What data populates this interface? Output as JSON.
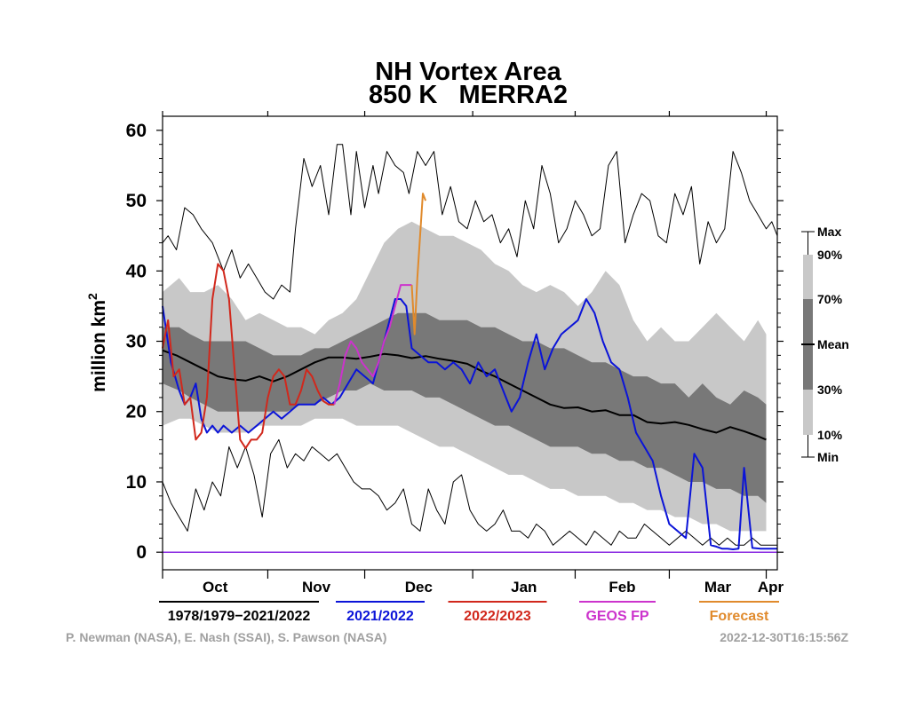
{
  "chart_data": {
    "type": "area",
    "title": "NH Vortex Area",
    "subtitle": "850 K   MERRA2",
    "ylabel": "million km",
    "ylabel_sup": "2",
    "ylim": [
      -2.5,
      62
    ],
    "yticks": [
      "0",
      "10",
      "20",
      "30",
      "40",
      "50",
      "60"
    ],
    "x_range": [
      0,
      222
    ],
    "months": [
      {
        "label": "Oct",
        "start": 0,
        "end": 38
      },
      {
        "label": "Nov",
        "start": 38,
        "end": 73
      },
      {
        "label": "Dec",
        "start": 73,
        "end": 112
      },
      {
        "label": "Jan",
        "start": 112,
        "end": 149
      },
      {
        "label": "Feb",
        "start": 149,
        "end": 183
      },
      {
        "label": "Mar",
        "start": 183,
        "end": 218
      },
      {
        "label": "Apr",
        "start": 218,
        "end": 222
      }
    ],
    "x_month_ticks": [
      0,
      38,
      73,
      112,
      149,
      183,
      218
    ],
    "bands": {
      "x": [
        0,
        6,
        10,
        15,
        20,
        25,
        30,
        35,
        40,
        45,
        50,
        55,
        60,
        65,
        70,
        75,
        80,
        85,
        90,
        95,
        100,
        105,
        110,
        115,
        120,
        125,
        130,
        135,
        140,
        145,
        150,
        155,
        160,
        165,
        170,
        175,
        180,
        185,
        190,
        195,
        200,
        205,
        210,
        215,
        218
      ],
      "p90": [
        37,
        39,
        37,
        37,
        38,
        36,
        33,
        34,
        33,
        32,
        32,
        31,
        33,
        34,
        36,
        40,
        44,
        46,
        47,
        46,
        45,
        45,
        44,
        43,
        41,
        40,
        38,
        37,
        38,
        37,
        35,
        37,
        40,
        38,
        33,
        30,
        32,
        30,
        30,
        32,
        34,
        32,
        30,
        33,
        31
      ],
      "p70": [
        32,
        32,
        31,
        30,
        30,
        30,
        30,
        29,
        28,
        28,
        28,
        29,
        29,
        30,
        31,
        32,
        33,
        34,
        34,
        34,
        33,
        33,
        33,
        32,
        32,
        31,
        30,
        30,
        29,
        29,
        28,
        27,
        27,
        26,
        25,
        25,
        24,
        24,
        22,
        24,
        22,
        21,
        23,
        22,
        21
      ],
      "p30": [
        24,
        23,
        22,
        21,
        20,
        20,
        20,
        20,
        20,
        20,
        21,
        21,
        22,
        23,
        23,
        24,
        23,
        23,
        23,
        22,
        22,
        21,
        20,
        19,
        18,
        18,
        17,
        16,
        15,
        15,
        15,
        14,
        14,
        13,
        13,
        12,
        12,
        11,
        10,
        10,
        9,
        9,
        8,
        8,
        7
      ],
      "p10": [
        18,
        19,
        19,
        18,
        17,
        17,
        17,
        18,
        18,
        18,
        18,
        19,
        19,
        19,
        18,
        18,
        18,
        18,
        17,
        16,
        15,
        15,
        14,
        13,
        12,
        11,
        11,
        10,
        9,
        9,
        8,
        8,
        8,
        7,
        7,
        6,
        6,
        5,
        5,
        4,
        4,
        3,
        3,
        3,
        3
      ]
    },
    "series": [
      {
        "name": "1978/1979−2021/2022",
        "role": "max",
        "color": "#000000",
        "x": [
          0,
          2,
          5,
          8,
          11,
          14,
          18,
          22,
          25,
          28,
          31,
          34,
          37,
          40,
          43,
          46,
          48,
          51,
          54,
          57,
          60,
          63,
          65,
          68,
          70,
          73,
          76,
          78,
          81,
          84,
          87,
          89,
          92,
          95,
          98,
          101,
          104,
          107,
          110,
          113,
          116,
          119,
          122,
          125,
          128,
          131,
          134,
          137,
          140,
          143,
          146,
          149,
          152,
          155,
          158,
          161,
          164,
          167,
          170,
          173,
          176,
          179,
          182,
          185,
          188,
          191,
          194,
          197,
          200,
          203,
          206,
          209,
          212,
          215,
          218,
          220,
          222
        ],
        "y": [
          44,
          45,
          43,
          49,
          48,
          46,
          44,
          40,
          43,
          39,
          41,
          39,
          37,
          36,
          38,
          37,
          46,
          56,
          52,
          55,
          48,
          58,
          58,
          48,
          57,
          49,
          55,
          51,
          57,
          55,
          54,
          51,
          57,
          55,
          57,
          48,
          52,
          47,
          46,
          50,
          47,
          48,
          44,
          46,
          42,
          50,
          46,
          55,
          51,
          44,
          46,
          50,
          48,
          45,
          46,
          55,
          57,
          44,
          48,
          51,
          50,
          45,
          44,
          51,
          48,
          52,
          41,
          47,
          44,
          46,
          57,
          54,
          50,
          48,
          46,
          47,
          45
        ],
        "stroke": 1
      },
      {
        "name": "1978/1979−2021/2022",
        "role": "min",
        "color": "#000000",
        "x": [
          0,
          3,
          6,
          9,
          12,
          15,
          18,
          21,
          24,
          27,
          30,
          33,
          36,
          39,
          42,
          45,
          48,
          51,
          54,
          57,
          60,
          63,
          66,
          69,
          72,
          75,
          78,
          81,
          84,
          87,
          90,
          93,
          96,
          99,
          102,
          105,
          108,
          111,
          114,
          117,
          120,
          123,
          126,
          129,
          132,
          135,
          138,
          141,
          144,
          147,
          150,
          153,
          156,
          159,
          162,
          165,
          168,
          171,
          174,
          177,
          180,
          183,
          186,
          189,
          192,
          195,
          198,
          201,
          204,
          207,
          210,
          213,
          216,
          219,
          222
        ],
        "y": [
          10,
          7,
          5,
          3,
          9,
          6,
          10,
          8,
          15,
          12,
          15,
          11,
          5,
          14,
          16,
          12,
          14,
          13,
          15,
          14,
          13,
          14,
          12,
          10,
          9,
          9,
          8,
          6,
          7,
          9,
          4,
          3,
          9,
          6,
          4,
          10,
          11,
          6,
          4,
          3,
          4,
          6,
          3,
          3,
          2,
          4,
          3,
          1,
          2,
          3,
          2,
          1,
          3,
          2,
          1,
          3,
          2,
          2,
          4,
          3,
          2,
          1,
          2,
          3,
          2,
          1,
          2,
          1,
          2,
          1,
          1,
          2,
          1,
          1,
          1
        ],
        "stroke": 1
      },
      {
        "name": "1978/1979−2021/2022",
        "role": "mean",
        "color": "#000000",
        "x": [
          0,
          5,
          10,
          15,
          20,
          25,
          30,
          35,
          40,
          45,
          50,
          55,
          60,
          65,
          70,
          75,
          80,
          85,
          90,
          95,
          100,
          105,
          110,
          115,
          120,
          125,
          130,
          135,
          140,
          145,
          150,
          155,
          160,
          165,
          170,
          175,
          180,
          185,
          190,
          195,
          200,
          205,
          210,
          215,
          218
        ],
        "y": [
          28.7,
          28,
          27,
          26,
          25,
          24.6,
          24.4,
          25,
          24.3,
          25,
          26,
          27,
          27.7,
          27.7,
          27.5,
          27.8,
          28.2,
          28,
          27.6,
          27.9,
          27.5,
          27.2,
          26.8,
          25.8,
          25,
          24,
          23,
          22,
          21,
          20.5,
          20.6,
          20,
          20.2,
          19.5,
          19.5,
          18.5,
          18.3,
          18.5,
          18.1,
          17.5,
          17,
          17.8,
          17.2,
          16.5,
          16
        ],
        "stroke": 2
      },
      {
        "name": "2021/2022",
        "color": "#0b14d8",
        "x": [
          0,
          3,
          6,
          8,
          10,
          12,
          14,
          16,
          18,
          20,
          22,
          25,
          28,
          31,
          34,
          37,
          40,
          43,
          46,
          49,
          52,
          55,
          58,
          61,
          64,
          67,
          70,
          73,
          76,
          78,
          80,
          82,
          84,
          86,
          88,
          90,
          93,
          96,
          99,
          102,
          105,
          108,
          111,
          114,
          117,
          120,
          123,
          126,
          129,
          132,
          135,
          138,
          141,
          144,
          147,
          150,
          153,
          156,
          159,
          162,
          165,
          168,
          171,
          174,
          177,
          180,
          183,
          186,
          189,
          192,
          195,
          198,
          200,
          202,
          204,
          206,
          208,
          210,
          213,
          216,
          218,
          220,
          222
        ],
        "y": [
          35,
          27,
          23,
          21,
          22,
          24,
          19,
          17,
          18,
          17,
          18,
          17,
          18,
          17,
          18,
          19,
          20,
          19,
          20,
          21,
          21,
          21,
          22,
          21,
          22,
          24,
          26,
          25,
          24,
          27,
          30,
          33,
          36,
          36,
          35,
          29,
          28,
          27,
          27,
          26,
          27,
          26,
          24,
          27,
          25,
          26,
          23,
          20,
          22,
          27,
          31,
          26,
          29,
          31,
          32,
          33,
          36,
          34,
          30,
          27,
          26,
          22,
          17,
          15,
          13,
          8,
          4,
          3,
          2,
          14,
          12,
          1,
          0.8,
          0.5,
          0.5,
          0.4,
          0.5,
          12,
          0.6,
          0.5,
          0.5,
          0.5,
          0.5
        ],
        "stroke": 2
      },
      {
        "name": "2022/2023",
        "color": "#d1281c",
        "x": [
          0,
          2,
          4,
          6,
          8,
          10,
          12,
          14,
          16,
          18,
          20,
          22,
          24,
          26,
          28,
          30,
          32,
          34,
          36,
          38,
          40,
          42,
          44,
          46,
          48,
          50,
          52,
          54,
          56,
          58,
          60,
          62
        ],
        "y": [
          29,
          33,
          25,
          26,
          21,
          22,
          16,
          17,
          22,
          36,
          41,
          40,
          36,
          26,
          16,
          14.8,
          16,
          16,
          17,
          22,
          25,
          26,
          25,
          21,
          21,
          23,
          26,
          25,
          23,
          21.5,
          21,
          21
        ],
        "stroke": 2
      },
      {
        "name": "GEOS FP",
        "color": "#cc33cc",
        "x": [
          62,
          64,
          66,
          68,
          70,
          72,
          74,
          76,
          78,
          80,
          82,
          84,
          86,
          88,
          90
        ],
        "y": [
          21,
          24,
          28,
          30,
          29,
          27,
          26,
          25,
          27,
          30,
          32,
          35,
          38,
          38,
          38
        ],
        "stroke": 2
      },
      {
        "name": "Forecast",
        "color": "#e08a2c",
        "x": [
          90,
          91,
          92,
          93,
          94,
          95
        ],
        "y": [
          38,
          31,
          39,
          45,
          51,
          50
        ],
        "stroke": 2
      }
    ],
    "zero_line_color": "#8a2be2",
    "percentile_legend": {
      "labels": [
        "Max",
        "90%",
        "70%",
        "Mean",
        "30%",
        "10%",
        "Min"
      ],
      "colors": {
        "outer": "#c8c8c8",
        "inner": "#787878",
        "mean": "#000000"
      }
    },
    "legend_placement": "bottom",
    "legend": [
      {
        "label": "1978/1979−2021/2022",
        "color": "#000000"
      },
      {
        "label": "2021/2022",
        "color": "#0b14d8"
      },
      {
        "label": "2022/2023",
        "color": "#d1281c"
      },
      {
        "label": "GEOS FP",
        "color": "#cc33cc"
      },
      {
        "label": "Forecast",
        "color": "#e08a2c"
      }
    ],
    "credit": "P. Newman (NASA), E. Nash (SSAI), S. Pawson (NASA)",
    "timestamp": "2022-12-30T16:15:56Z"
  }
}
